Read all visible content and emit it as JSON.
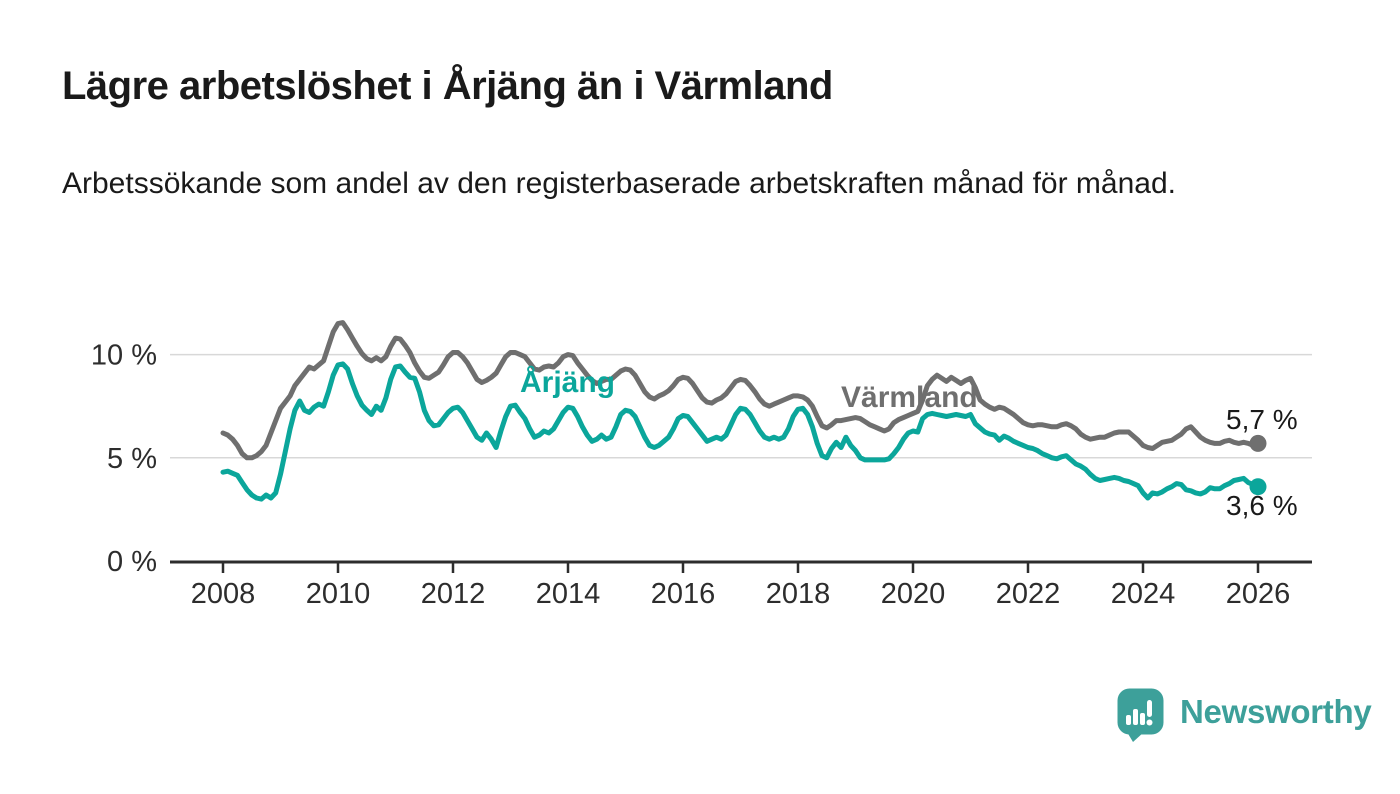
{
  "header": {
    "title": "Lägre arbetslöshet i Årjäng än i Värmland",
    "subtitle": "Arbetssökande som andel av den registerbaserade arbetskraften månad för månad."
  },
  "colors": {
    "accent_teal": "#0ba69b",
    "line_gray": "#6f6f6f",
    "value_text": "#1a1a1a",
    "axis": "#2d2d2d",
    "gridline": "#d8d8d8",
    "brand_teal": "#3da09a"
  },
  "chart_data": {
    "type": "line",
    "unit": "%",
    "start_year": 2008,
    "start_month": 1,
    "frequency": "monthly",
    "grid": "horizontal",
    "ylim": [
      0,
      12.2
    ],
    "x_ticks": [
      2008,
      2010,
      2012,
      2014,
      2016,
      2018,
      2020,
      2022,
      2024,
      2026
    ],
    "y_ticks": [
      {
        "value": 0,
        "label": "0 %"
      },
      {
        "value": 5,
        "label": "5 %"
      },
      {
        "value": 10,
        "label": "10 %"
      }
    ],
    "series": [
      {
        "name": "Värmland",
        "color": "#6f6f6f",
        "end_label": "5,7 %",
        "values": [
          6.2,
          6.1,
          5.9,
          5.6,
          5.2,
          5.0,
          5.0,
          5.1,
          5.3,
          5.6,
          6.2,
          6.8,
          7.4,
          7.7,
          8.0,
          8.5,
          8.8,
          9.1,
          9.4,
          9.3,
          9.5,
          9.7,
          10.4,
          11.1,
          11.5,
          11.55,
          11.2,
          10.8,
          10.4,
          10.05,
          9.8,
          9.7,
          9.85,
          9.7,
          9.9,
          10.4,
          10.8,
          10.75,
          10.45,
          10.1,
          9.6,
          9.2,
          8.9,
          8.85,
          9.0,
          9.15,
          9.5,
          9.9,
          10.1,
          10.1,
          9.9,
          9.6,
          9.2,
          8.8,
          8.65,
          8.75,
          8.9,
          9.1,
          9.5,
          9.9,
          10.1,
          10.1,
          10.0,
          9.9,
          9.6,
          9.3,
          9.25,
          9.4,
          9.45,
          9.4,
          9.6,
          9.9,
          10.0,
          9.95,
          9.6,
          9.3,
          9.0,
          8.75,
          8.6,
          8.7,
          8.8,
          8.8,
          9.0,
          9.2,
          9.3,
          9.25,
          9.0,
          8.6,
          8.2,
          7.95,
          7.85,
          8.0,
          8.1,
          8.25,
          8.5,
          8.8,
          8.9,
          8.85,
          8.6,
          8.25,
          7.9,
          7.7,
          7.65,
          7.8,
          7.9,
          8.1,
          8.4,
          8.7,
          8.8,
          8.75,
          8.5,
          8.2,
          7.85,
          7.6,
          7.5,
          7.6,
          7.7,
          7.8,
          7.9,
          8.0,
          8.0,
          7.95,
          7.8,
          7.5,
          7.0,
          6.55,
          6.45,
          6.6,
          6.8,
          6.8,
          6.85,
          6.9,
          6.95,
          6.9,
          6.75,
          6.6,
          6.5,
          6.4,
          6.3,
          6.4,
          6.7,
          6.85,
          6.95,
          7.05,
          7.15,
          7.25,
          7.8,
          8.5,
          8.8,
          9.0,
          8.85,
          8.7,
          8.9,
          8.75,
          8.6,
          8.75,
          8.85,
          8.4,
          7.8,
          7.6,
          7.45,
          7.35,
          7.45,
          7.4,
          7.25,
          7.1,
          6.9,
          6.7,
          6.6,
          6.55,
          6.6,
          6.6,
          6.55,
          6.5,
          6.5,
          6.6,
          6.65,
          6.55,
          6.4,
          6.15,
          6.0,
          5.9,
          5.95,
          6.0,
          6.0,
          6.1,
          6.2,
          6.25,
          6.25,
          6.25,
          6.05,
          5.85,
          5.6,
          5.5,
          5.45,
          5.6,
          5.75,
          5.8,
          5.85,
          6.0,
          6.15,
          6.4,
          6.5,
          6.25,
          6.0,
          5.85,
          5.75,
          5.7,
          5.7,
          5.8,
          5.85,
          5.75,
          5.7,
          5.75,
          5.7,
          5.6,
          5.7
        ]
      },
      {
        "name": "Årjäng",
        "color": "#0ba69b",
        "end_label": "3,6 %",
        "values": [
          4.3,
          4.35,
          4.25,
          4.15,
          3.8,
          3.45,
          3.2,
          3.05,
          3.0,
          3.2,
          3.05,
          3.3,
          4.2,
          5.3,
          6.4,
          7.3,
          7.75,
          7.3,
          7.2,
          7.45,
          7.6,
          7.5,
          8.2,
          9.0,
          9.5,
          9.55,
          9.3,
          8.6,
          8.0,
          7.55,
          7.3,
          7.1,
          7.5,
          7.3,
          7.9,
          8.8,
          9.4,
          9.45,
          9.15,
          8.9,
          8.85,
          8.2,
          7.3,
          6.8,
          6.55,
          6.6,
          6.9,
          7.2,
          7.4,
          7.45,
          7.2,
          6.8,
          6.4,
          6.0,
          5.85,
          6.2,
          5.9,
          5.5,
          6.3,
          7.0,
          7.5,
          7.55,
          7.2,
          6.9,
          6.4,
          6.0,
          6.1,
          6.3,
          6.2,
          6.4,
          6.8,
          7.2,
          7.45,
          7.4,
          7.0,
          6.5,
          6.1,
          5.8,
          5.9,
          6.1,
          5.9,
          6.0,
          6.5,
          7.1,
          7.3,
          7.25,
          7.0,
          6.5,
          6.0,
          5.6,
          5.5,
          5.6,
          5.8,
          6.0,
          6.4,
          6.9,
          7.05,
          7.0,
          6.7,
          6.4,
          6.1,
          5.8,
          5.9,
          6.0,
          5.9,
          6.1,
          6.6,
          7.1,
          7.4,
          7.35,
          7.1,
          6.7,
          6.3,
          6.0,
          5.9,
          6.0,
          5.9,
          6.0,
          6.4,
          7.0,
          7.35,
          7.4,
          7.1,
          6.5,
          5.7,
          5.1,
          5.0,
          5.45,
          5.75,
          5.5,
          6.0,
          5.6,
          5.35,
          5.0,
          4.9,
          4.9,
          4.9,
          4.9,
          4.9,
          4.95,
          5.2,
          5.5,
          5.9,
          6.2,
          6.3,
          6.25,
          6.9,
          7.1,
          7.15,
          7.1,
          7.05,
          7.0,
          7.05,
          7.1,
          7.05,
          7.0,
          7.1,
          6.65,
          6.45,
          6.25,
          6.15,
          6.1,
          5.85,
          6.05,
          5.95,
          5.8,
          5.7,
          5.6,
          5.5,
          5.45,
          5.35,
          5.2,
          5.1,
          5.0,
          4.95,
          5.05,
          5.1,
          4.9,
          4.7,
          4.6,
          4.45,
          4.2,
          4.0,
          3.9,
          3.95,
          4.0,
          4.05,
          4.0,
          3.9,
          3.85,
          3.75,
          3.65,
          3.3,
          3.05,
          3.3,
          3.25,
          3.35,
          3.5,
          3.6,
          3.75,
          3.7,
          3.45,
          3.4,
          3.3,
          3.25,
          3.35,
          3.55,
          3.5,
          3.5,
          3.65,
          3.75,
          3.9,
          3.95,
          4.0,
          3.8,
          3.7,
          3.6
        ]
      }
    ]
  },
  "footer": {
    "brand": "Newsworthy",
    "logo_icon": "bar-chart-speech-bubble-icon"
  }
}
